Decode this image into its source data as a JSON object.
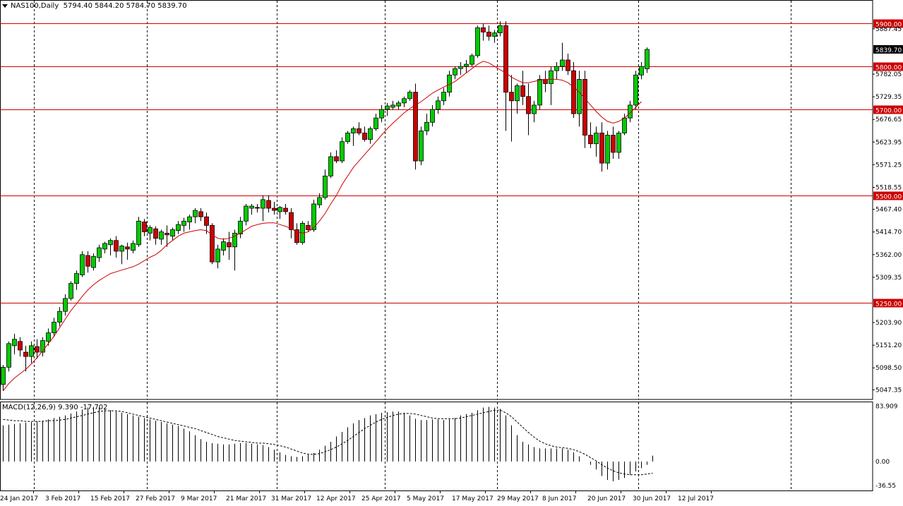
{
  "header": {
    "symbol": "NAS100,Daily",
    "ohlc": "5794.40 5844.20 5784.70 5839.70"
  },
  "macd_label": "MACD(12,26,9) 9.390 -17.702",
  "colors": {
    "background": "#ffffff",
    "bull": "#00cc00",
    "bear": "#cc0000",
    "candle_outline": "#000000",
    "ma_line": "#cc0000",
    "hline": "#cc0000",
    "grid": "#000000"
  },
  "chart_data": [
    {
      "type": "candlestick",
      "title": "NAS100,Daily",
      "ylim": [
        5025,
        5925
      ],
      "y_ticks": [
        "5887.45",
        "5782.05",
        "5729.35",
        "5676.65",
        "5623.95",
        "5571.25",
        "5518.55",
        "5467.40",
        "5414.70",
        "5362.00",
        "5309.35",
        "5203.90",
        "5151.20",
        "5098.50",
        "5047.35"
      ],
      "current_price": "5839.70",
      "horizontal_levels": [
        "5900.00",
        "5800.00",
        "5700.00",
        "5500.00",
        "5250.00"
      ],
      "x_tick_labels": [
        "24 Jan 2017",
        "3 Feb 2017",
        "15 Feb 2017",
        "27 Feb 2017",
        "9 Mar 2017",
        "21 Mar 2017",
        "31 Mar 2017",
        "12 Apr 2017",
        "25 Apr 2017",
        "5 May 2017",
        "17 May 2017",
        "29 May 2017",
        "8 Jun 2017",
        "20 Jun 2017",
        "30 Jun 2017",
        "12 Jul 2017"
      ],
      "candles_ohlc": [
        [
          5060,
          5105,
          5045,
          5100
        ],
        [
          5100,
          5160,
          5090,
          5155
        ],
        [
          5150,
          5178,
          5130,
          5165
        ],
        [
          5160,
          5170,
          5125,
          5140
        ],
        [
          5135,
          5150,
          5090,
          5125
        ],
        [
          5125,
          5160,
          5110,
          5150
        ],
        [
          5148,
          5165,
          5120,
          5135
        ],
        [
          5135,
          5170,
          5125,
          5162
        ],
        [
          5160,
          5190,
          5150,
          5180
        ],
        [
          5180,
          5215,
          5170,
          5205
        ],
        [
          5205,
          5240,
          5195,
          5230
        ],
        [
          5230,
          5270,
          5220,
          5260
        ],
        [
          5260,
          5300,
          5255,
          5295
        ],
        [
          5295,
          5325,
          5280,
          5318
        ],
        [
          5315,
          5370,
          5310,
          5362
        ],
        [
          5360,
          5370,
          5320,
          5335
        ],
        [
          5332,
          5365,
          5325,
          5358
        ],
        [
          5355,
          5385,
          5345,
          5378
        ],
        [
          5375,
          5392,
          5365,
          5388
        ],
        [
          5385,
          5400,
          5360,
          5395
        ],
        [
          5395,
          5405,
          5355,
          5370
        ],
        [
          5370,
          5385,
          5340,
          5382
        ],
        [
          5380,
          5390,
          5350,
          5375
        ],
        [
          5372,
          5395,
          5365,
          5388
        ],
        [
          5385,
          5450,
          5380,
          5440
        ],
        [
          5438,
          5445,
          5405,
          5415
        ],
        [
          5412,
          5430,
          5395,
          5425
        ],
        [
          5422,
          5428,
          5385,
          5400
        ],
        [
          5398,
          5420,
          5385,
          5415
        ],
        [
          5412,
          5430,
          5380,
          5408
        ],
        [
          5405,
          5425,
          5395,
          5420
        ],
        [
          5418,
          5440,
          5410,
          5432
        ],
        [
          5430,
          5448,
          5415,
          5440
        ],
        [
          5438,
          5455,
          5420,
          5450
        ],
        [
          5450,
          5470,
          5435,
          5465
        ],
        [
          5462,
          5470,
          5440,
          5450
        ],
        [
          5450,
          5460,
          5410,
          5430
        ],
        [
          5430,
          5435,
          5340,
          5345
        ],
        [
          5345,
          5385,
          5330,
          5375
        ],
        [
          5372,
          5400,
          5360,
          5392
        ],
        [
          5390,
          5415,
          5350,
          5380
        ],
        [
          5380,
          5420,
          5325,
          5412
        ],
        [
          5410,
          5450,
          5400,
          5440
        ],
        [
          5440,
          5480,
          5430,
          5475
        ],
        [
          5470,
          5480,
          5455,
          5475
        ],
        [
          5472,
          5480,
          5460,
          5470
        ],
        [
          5470,
          5500,
          5440,
          5490
        ],
        [
          5488,
          5500,
          5460,
          5470
        ],
        [
          5470,
          5485,
          5455,
          5465
        ],
        [
          5462,
          5475,
          5445,
          5472
        ],
        [
          5470,
          5480,
          5455,
          5462
        ],
        [
          5460,
          5470,
          5400,
          5420
        ],
        [
          5420,
          5435,
          5385,
          5390
        ],
        [
          5390,
          5440,
          5385,
          5435
        ],
        [
          5430,
          5440,
          5415,
          5420
        ],
        [
          5420,
          5490,
          5415,
          5480
        ],
        [
          5478,
          5505,
          5470,
          5495
        ],
        [
          5495,
          5560,
          5490,
          5545
        ],
        [
          5545,
          5600,
          5540,
          5590
        ],
        [
          5590,
          5605,
          5575,
          5580
        ],
        [
          5580,
          5635,
          5575,
          5625
        ],
        [
          5625,
          5650,
          5620,
          5645
        ],
        [
          5645,
          5660,
          5615,
          5655
        ],
        [
          5655,
          5670,
          5640,
          5645
        ],
        [
          5645,
          5660,
          5625,
          5630
        ],
        [
          5630,
          5660,
          5620,
          5655
        ],
        [
          5655,
          5690,
          5650,
          5680
        ],
        [
          5680,
          5710,
          5670,
          5700
        ],
        [
          5700,
          5715,
          5685,
          5708
        ],
        [
          5705,
          5720,
          5700,
          5710
        ],
        [
          5708,
          5720,
          5700,
          5715
        ],
        [
          5715,
          5730,
          5705,
          5725
        ],
        [
          5725,
          5745,
          5720,
          5740
        ],
        [
          5740,
          5760,
          5560,
          5580
        ],
        [
          5580,
          5660,
          5570,
          5650
        ],
        [
          5650,
          5690,
          5640,
          5670
        ],
        [
          5670,
          5710,
          5660,
          5700
        ],
        [
          5700,
          5730,
          5690,
          5720
        ],
        [
          5720,
          5750,
          5710,
          5740
        ],
        [
          5740,
          5790,
          5730,
          5780
        ],
        [
          5780,
          5800,
          5770,
          5795
        ],
        [
          5795,
          5810,
          5780,
          5800
        ],
        [
          5800,
          5815,
          5785,
          5805
        ],
        [
          5805,
          5830,
          5800,
          5825
        ],
        [
          5825,
          5895,
          5820,
          5890
        ],
        [
          5890,
          5900,
          5860,
          5880
        ],
        [
          5880,
          5895,
          5860,
          5870
        ],
        [
          5870,
          5885,
          5855,
          5878
        ],
        [
          5878,
          5905,
          5870,
          5895
        ],
        [
          5895,
          5905,
          5650,
          5740
        ],
        [
          5740,
          5780,
          5625,
          5720
        ],
        [
          5720,
          5760,
          5690,
          5755
        ],
        [
          5755,
          5790,
          5710,
          5730
        ],
        [
          5730,
          5760,
          5640,
          5690
        ],
        [
          5690,
          5720,
          5670,
          5710
        ],
        [
          5710,
          5780,
          5700,
          5770
        ],
        [
          5770,
          5790,
          5740,
          5760
        ],
        [
          5760,
          5800,
          5710,
          5790
        ],
        [
          5790,
          5810,
          5770,
          5800
        ],
        [
          5800,
          5855,
          5790,
          5815
        ],
        [
          5815,
          5830,
          5780,
          5790
        ],
        [
          5790,
          5810,
          5680,
          5690
        ],
        [
          5690,
          5790,
          5660,
          5770
        ],
        [
          5770,
          5790,
          5610,
          5640
        ],
        [
          5640,
          5670,
          5610,
          5620
        ],
        [
          5620,
          5660,
          5590,
          5645
        ],
        [
          5645,
          5670,
          5555,
          5575
        ],
        [
          5575,
          5650,
          5560,
          5640
        ],
        [
          5640,
          5660,
          5585,
          5600
        ],
        [
          5600,
          5650,
          5585,
          5645
        ],
        [
          5645,
          5690,
          5640,
          5680
        ],
        [
          5680,
          5720,
          5670,
          5710
        ],
        [
          5710,
          5790,
          5700,
          5780
        ],
        [
          5780,
          5810,
          5770,
          5800
        ],
        [
          5794.4,
          5844.2,
          5784.7,
          5839.7
        ]
      ],
      "ma_line": [
        5045,
        5062,
        5075,
        5085,
        5095,
        5108,
        5122,
        5138,
        5155,
        5172,
        5192,
        5212,
        5232,
        5248,
        5265,
        5280,
        5292,
        5302,
        5310,
        5318,
        5322,
        5326,
        5330,
        5334,
        5340,
        5348,
        5356,
        5362,
        5372,
        5385,
        5395,
        5405,
        5412,
        5415,
        5418,
        5420,
        5418,
        5408,
        5400,
        5398,
        5400,
        5405,
        5412,
        5420,
        5428,
        5432,
        5435,
        5436,
        5436,
        5432,
        5428,
        5422,
        5415,
        5412,
        5415,
        5425,
        5440,
        5458,
        5480,
        5500,
        5525,
        5545,
        5565,
        5580,
        5595,
        5610,
        5625,
        5640,
        5655,
        5668,
        5680,
        5692,
        5702,
        5710,
        5718,
        5728,
        5738,
        5745,
        5752,
        5758,
        5765,
        5775,
        5785,
        5795,
        5805,
        5812,
        5808,
        5800,
        5792,
        5785,
        5775,
        5768,
        5762,
        5762,
        5765,
        5768,
        5770,
        5770,
        5770,
        5768,
        5762,
        5752,
        5740,
        5725,
        5710,
        5695,
        5682,
        5672,
        5668,
        5672,
        5680,
        5692,
        5705,
        5718
      ],
      "macd_panel": {
        "ylim": [
          -45,
          90
        ],
        "y_ticks": [
          "83.909",
          "0.00",
          "-36.55"
        ],
        "histogram": [
          55,
          56,
          57,
          58,
          59,
          60,
          61,
          62,
          64,
          66,
          68,
          70,
          73,
          76,
          79,
          82,
          83,
          82,
          80,
          78,
          76,
          74,
          72,
          70,
          68,
          66,
          64,
          62,
          60,
          58,
          56,
          54,
          50,
          46,
          40,
          34,
          30,
          28,
          27,
          26,
          26,
          27,
          28,
          28,
          27,
          26,
          25,
          22,
          18,
          14,
          10,
          8,
          7,
          8,
          10,
          13,
          18,
          24,
          30,
          38,
          45,
          52,
          58,
          63,
          66,
          70,
          72,
          74,
          75,
          76,
          76,
          74,
          70,
          65,
          63,
          63,
          64,
          64,
          63,
          64,
          66,
          70,
          72,
          74,
          78,
          82,
          83,
          82,
          80,
          70,
          55,
          40,
          30,
          26,
          22,
          20,
          20,
          20,
          20,
          20,
          18,
          14,
          8,
          0,
          -5,
          -12,
          -22,
          -28,
          -30,
          -28,
          -25,
          -20,
          -15,
          -10,
          -5,
          9
        ],
        "signal": [
          64,
          63,
          62,
          62,
          61,
          61,
          61,
          61,
          62,
          62,
          63,
          64,
          66,
          68,
          70,
          72,
          74,
          76,
          77,
          77,
          77,
          76,
          74,
          72,
          70,
          68,
          66,
          64,
          62,
          60,
          58,
          56,
          54,
          52,
          50,
          47,
          44,
          41,
          38,
          36,
          34,
          32,
          31,
          30,
          29,
          28,
          28,
          27,
          26,
          24,
          22,
          19,
          16,
          13,
          11,
          11,
          12,
          15,
          18,
          22,
          27,
          32,
          38,
          44,
          50,
          55,
          60,
          64,
          67,
          70,
          72,
          73,
          73,
          72,
          70,
          68,
          66,
          65,
          65,
          65,
          65,
          66,
          68,
          70,
          72,
          74,
          76,
          78,
          78,
          74,
          68,
          60,
          52,
          44,
          37,
          31,
          27,
          24,
          22,
          21,
          20,
          18,
          15,
          11,
          6,
          1,
          -5,
          -10,
          -14,
          -17,
          -19,
          -20,
          -20,
          -20,
          -19,
          -17.7
        ]
      }
    }
  ]
}
